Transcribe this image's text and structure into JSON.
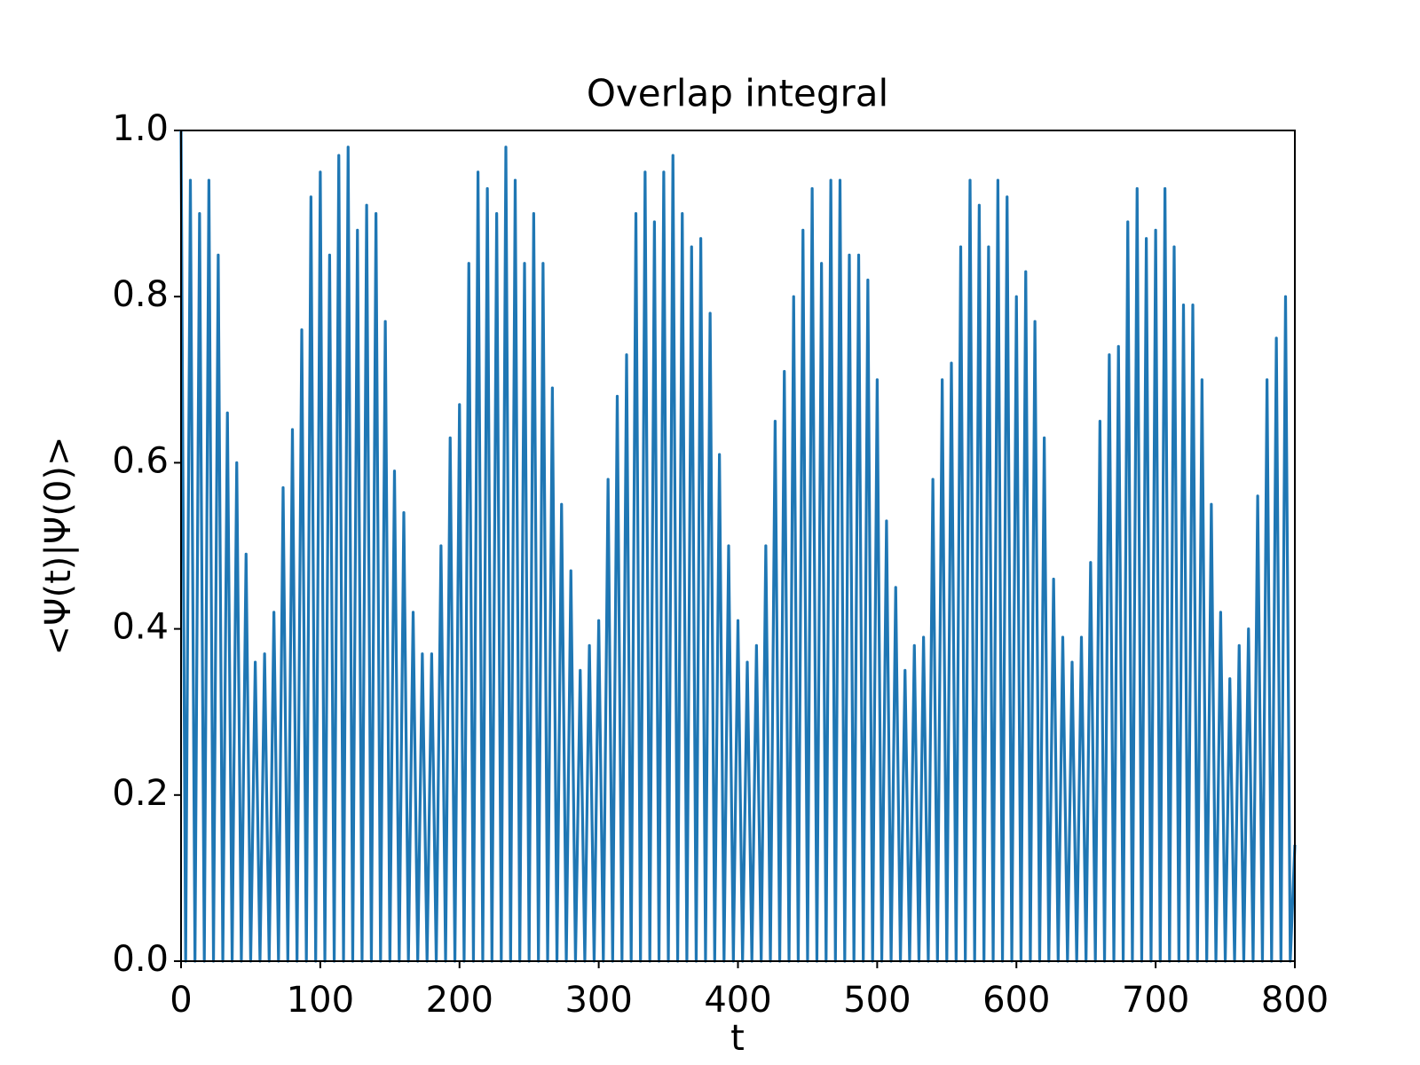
{
  "chart_data": {
    "type": "line",
    "title": "Overlap integral",
    "x_label": "t",
    "y_label": "<Ψ(t)|Ψ(0)>",
    "x": [
      0,
      3.3,
      6.7,
      10,
      13.3,
      16.7,
      20,
      23.3,
      26.7,
      30,
      33.3,
      36.7,
      40,
      43.3,
      46.7,
      50,
      53.3,
      56.7,
      60,
      63.3,
      66.7,
      70,
      73.3,
      76.7,
      80,
      83.3,
      86.7,
      90,
      93.3,
      96.7,
      100,
      103.3,
      106.7,
      110,
      113.3,
      116.7,
      120,
      123.3,
      126.7,
      130,
      133.3,
      136.7,
      140,
      143.3,
      146.7,
      150,
      153.3,
      156.7,
      160,
      163.3,
      166.7,
      170,
      173.3,
      176.7,
      180,
      183.3,
      186.7,
      190,
      193.3,
      196.7,
      200,
      203.3,
      206.7,
      210,
      213.3,
      216.7,
      220,
      223.3,
      226.7,
      230,
      233.3,
      236.7,
      240,
      243.3,
      246.7,
      250,
      253.3,
      256.7,
      260,
      263.3,
      266.7,
      270,
      273.3,
      276.7,
      280,
      283.3,
      286.7,
      290,
      293.3,
      296.7,
      300,
      303.3,
      306.7,
      310,
      313.3,
      316.7,
      320,
      323.3,
      326.7,
      330,
      333.3,
      336.7,
      340,
      343.3,
      346.7,
      350,
      353.3,
      356.7,
      360,
      363.3,
      366.7,
      370,
      373.3,
      376.7,
      380,
      383.3,
      386.7,
      390,
      393.3,
      396.7,
      400,
      403.3,
      406.7,
      410,
      413.3,
      416.7,
      420,
      423.3,
      426.7,
      430,
      433.3,
      436.7,
      440,
      443.3,
      446.7,
      450,
      453.3,
      456.7,
      460,
      463.3,
      466.7,
      470,
      473.3,
      476.7,
      480,
      483.3,
      486.7,
      490,
      493.3,
      496.7,
      500,
      503.3,
      506.7,
      510,
      513.3,
      516.7,
      520,
      523.3,
      526.7,
      530,
      533.3,
      536.7,
      540,
      543.3,
      546.7,
      550,
      553.3,
      556.7,
      560,
      563.3,
      566.7,
      570,
      573.3,
      576.7,
      580,
      583.3,
      586.7,
      590,
      593.3,
      596.7,
      600,
      603.3,
      606.7,
      610,
      613.3,
      616.7,
      620,
      623.3,
      626.7,
      630,
      633.3,
      636.7,
      640,
      643.3,
      646.7,
      650,
      653.3,
      656.7,
      660,
      663.3,
      666.7,
      670,
      673.3,
      676.7,
      680,
      683.3,
      686.7,
      690,
      693.3,
      696.7,
      700,
      703.3,
      706.7,
      710,
      713.3,
      716.7,
      720,
      723.3,
      726.7,
      730,
      733.3,
      736.7,
      740,
      743.3,
      746.7,
      750,
      753.3,
      756.7,
      760,
      763.3,
      766.7,
      770,
      773.3,
      776.7,
      780,
      783.3,
      786.7,
      790,
      793.3,
      796.7,
      800
    ],
    "series": [
      {
        "color": "#1f77b4",
        "values": [
          1.0,
          0,
          0.94,
          0,
          0.9,
          0,
          0.94,
          0,
          0.85,
          0,
          0.66,
          0,
          0.6,
          0,
          0.49,
          0,
          0.36,
          0,
          0.37,
          0,
          0.42,
          0,
          0.57,
          0,
          0.64,
          0,
          0.76,
          0,
          0.92,
          0,
          0.95,
          0,
          0.85,
          0,
          0.97,
          0,
          0.98,
          0,
          0.88,
          0,
          0.91,
          0,
          0.9,
          0,
          0.77,
          0,
          0.59,
          0,
          0.54,
          0,
          0.42,
          0,
          0.37,
          0,
          0.37,
          0,
          0.5,
          0,
          0.63,
          0,
          0.67,
          0,
          0.84,
          0,
          0.95,
          0,
          0.93,
          0,
          0.9,
          0,
          0.98,
          0,
          0.94,
          0,
          0.84,
          0,
          0.9,
          0,
          0.84,
          0,
          0.69,
          0,
          0.55,
          0,
          0.47,
          0,
          0.35,
          0,
          0.38,
          0,
          0.41,
          0,
          0.58,
          0,
          0.68,
          0,
          0.73,
          0,
          0.9,
          0,
          0.95,
          0,
          0.89,
          0,
          0.95,
          0,
          0.97,
          0,
          0.9,
          0,
          0.86,
          0,
          0.87,
          0,
          0.78,
          0,
          0.61,
          0,
          0.5,
          0,
          0.41,
          0,
          0.36,
          0,
          0.38,
          0,
          0.5,
          0,
          0.65,
          0,
          0.71,
          0,
          0.8,
          0,
          0.88,
          0,
          0.93,
          0,
          0.84,
          0,
          0.94,
          0,
          0.94,
          0,
          0.85,
          0,
          0.85,
          0,
          0.82,
          0,
          0.7,
          0,
          0.53,
          0,
          0.45,
          0,
          0.35,
          0,
          0.38,
          0,
          0.39,
          0,
          0.58,
          0,
          0.7,
          0,
          0.72,
          0,
          0.86,
          0,
          0.94,
          0,
          0.91,
          0,
          0.86,
          0,
          0.94,
          0,
          0.92,
          0,
          0.8,
          0,
          0.83,
          0,
          0.77,
          0,
          0.63,
          0,
          0.46,
          0,
          0.39,
          0,
          0.36,
          0,
          0.39,
          0,
          0.48,
          0,
          0.65,
          0,
          0.73,
          0,
          0.74,
          0,
          0.89,
          0,
          0.93,
          0,
          0.87,
          0,
          0.88,
          0,
          0.93,
          0,
          0.86,
          0,
          0.79,
          0,
          0.79,
          0,
          0.7,
          0,
          0.55,
          0,
          0.42,
          0,
          0.34,
          0,
          0.38,
          0,
          0.4,
          0,
          0.56,
          0,
          0.7,
          0,
          0.75,
          0,
          0.8,
          0,
          0.14
        ]
      }
    ],
    "xlim": [
      0,
      800
    ],
    "ylim": [
      0,
      1
    ],
    "xticks": [
      0,
      100,
      200,
      300,
      400,
      500,
      600,
      700,
      800
    ],
    "yticks": [
      {
        "value": 0,
        "label": "0.0"
      },
      0.2,
      0.4,
      0.6,
      0.8,
      {
        "value": 1,
        "label": "1.0"
      }
    ]
  }
}
